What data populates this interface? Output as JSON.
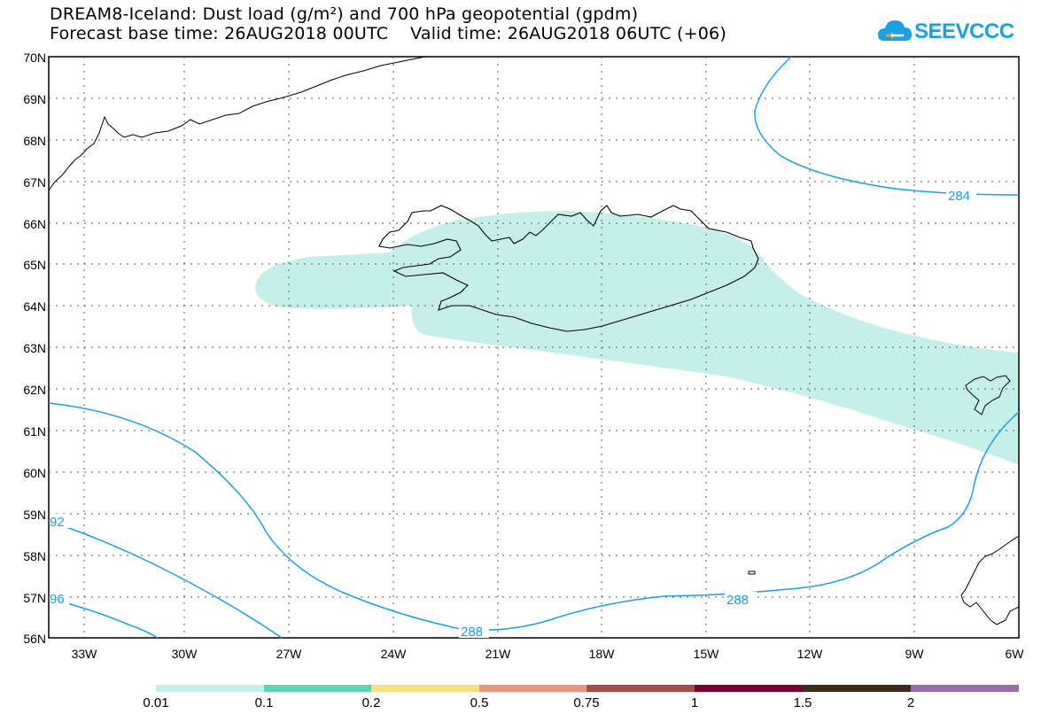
{
  "header": {
    "line1": "DREAM8-Iceland: Dust load (g/m²) and 700 hPa geopotential (gpdm)",
    "line2": "Forecast base time: 26AUG2018 00UTC    Valid time: 26AUG2018 06UTC (+06)"
  },
  "logo": {
    "text": "SEEVCCC",
    "color": "#1aa0e6"
  },
  "map": {
    "lat_labels": [
      "70N",
      "69N",
      "68N",
      "67N",
      "66N",
      "65N",
      "64N",
      "63N",
      "62N",
      "61N",
      "60N",
      "59N",
      "58N",
      "57N",
      "56N"
    ],
    "lon_labels": [
      "33W",
      "30W",
      "27W",
      "24W",
      "21W",
      "18W",
      "15W",
      "12W",
      "9W",
      "6W"
    ],
    "contour_labels": [
      "284",
      "288",
      "288",
      "92",
      "96"
    ],
    "contour_color": "#1aa0e6",
    "coast_color": "#000000",
    "dust_color": "#c5f0ea"
  },
  "colorbar": {
    "labels": [
      "0.01",
      "0.1",
      "0.2",
      "0.5",
      "0.75",
      "1",
      "1.5",
      "2"
    ],
    "colors": [
      "#c5f0ea",
      "#5cd6b0",
      "#f5e27a",
      "#e8967a",
      "#a04f45",
      "#7a0030",
      "#3d2a1a",
      "#9a6fa8"
    ]
  }
}
